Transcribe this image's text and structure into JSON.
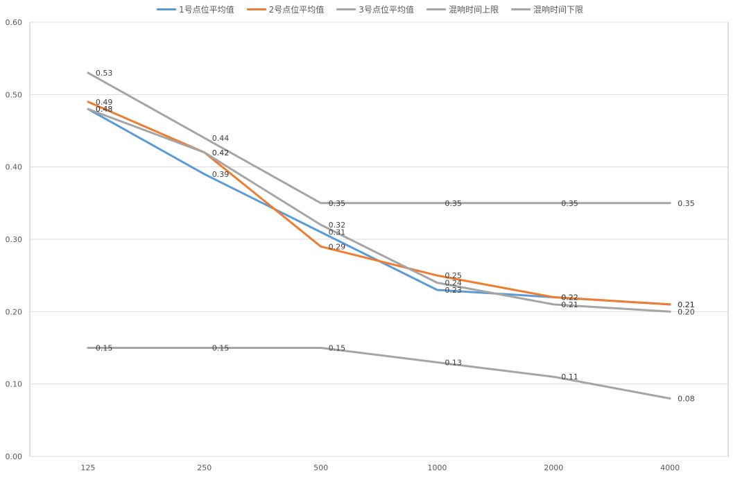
{
  "chart_data": {
    "type": "line",
    "title": "",
    "xlabel": "",
    "ylabel": "",
    "categories": [
      "125",
      "250",
      "500",
      "1000",
      "2000",
      "4000"
    ],
    "ylim": [
      0,
      0.6
    ],
    "yticks": [
      "0.00",
      "0.10",
      "0.20",
      "0.30",
      "0.40",
      "0.50",
      "0.60"
    ],
    "grid": true,
    "legend_position": "top",
    "series": [
      {
        "name": "1号点位平均值",
        "color": "#5B9BD5",
        "values": [
          0.48,
          0.39,
          0.31,
          0.23,
          0.22,
          0.21
        ],
        "labels": [
          "0.48",
          "0.39",
          "0.31",
          "0.23",
          "0.22",
          "0.21"
        ]
      },
      {
        "name": "2号点位平均值",
        "color": "#ED7D31",
        "values": [
          0.49,
          0.42,
          0.29,
          0.25,
          0.22,
          0.21
        ],
        "labels": [
          "0.49",
          "0.42",
          "0.29",
          "0.25",
          "0.22",
          "0.21"
        ]
      },
      {
        "name": "3号点位平均值",
        "color": "#A5A5A5",
        "values": [
          0.48,
          0.42,
          0.32,
          0.24,
          0.21,
          0.2
        ],
        "labels": [
          "0.48",
          "0.42",
          "0.32",
          "0.24",
          "0.21",
          "0.20"
        ]
      },
      {
        "name": "混响时间上限",
        "color": "#A5A5A5",
        "values": [
          0.53,
          0.44,
          0.35,
          0.35,
          0.35,
          0.35
        ],
        "labels": [
          "0.53",
          "0.44",
          "0.35",
          "0.35",
          "0.35",
          "0.35"
        ]
      },
      {
        "name": "混响时间下限",
        "color": "#A5A5A5",
        "values": [
          0.15,
          0.15,
          0.15,
          0.13,
          0.11,
          0.08
        ],
        "labels": [
          "0.15",
          "0.15",
          "0.15",
          "0.13",
          "0.11",
          "0.08"
        ]
      }
    ]
  }
}
